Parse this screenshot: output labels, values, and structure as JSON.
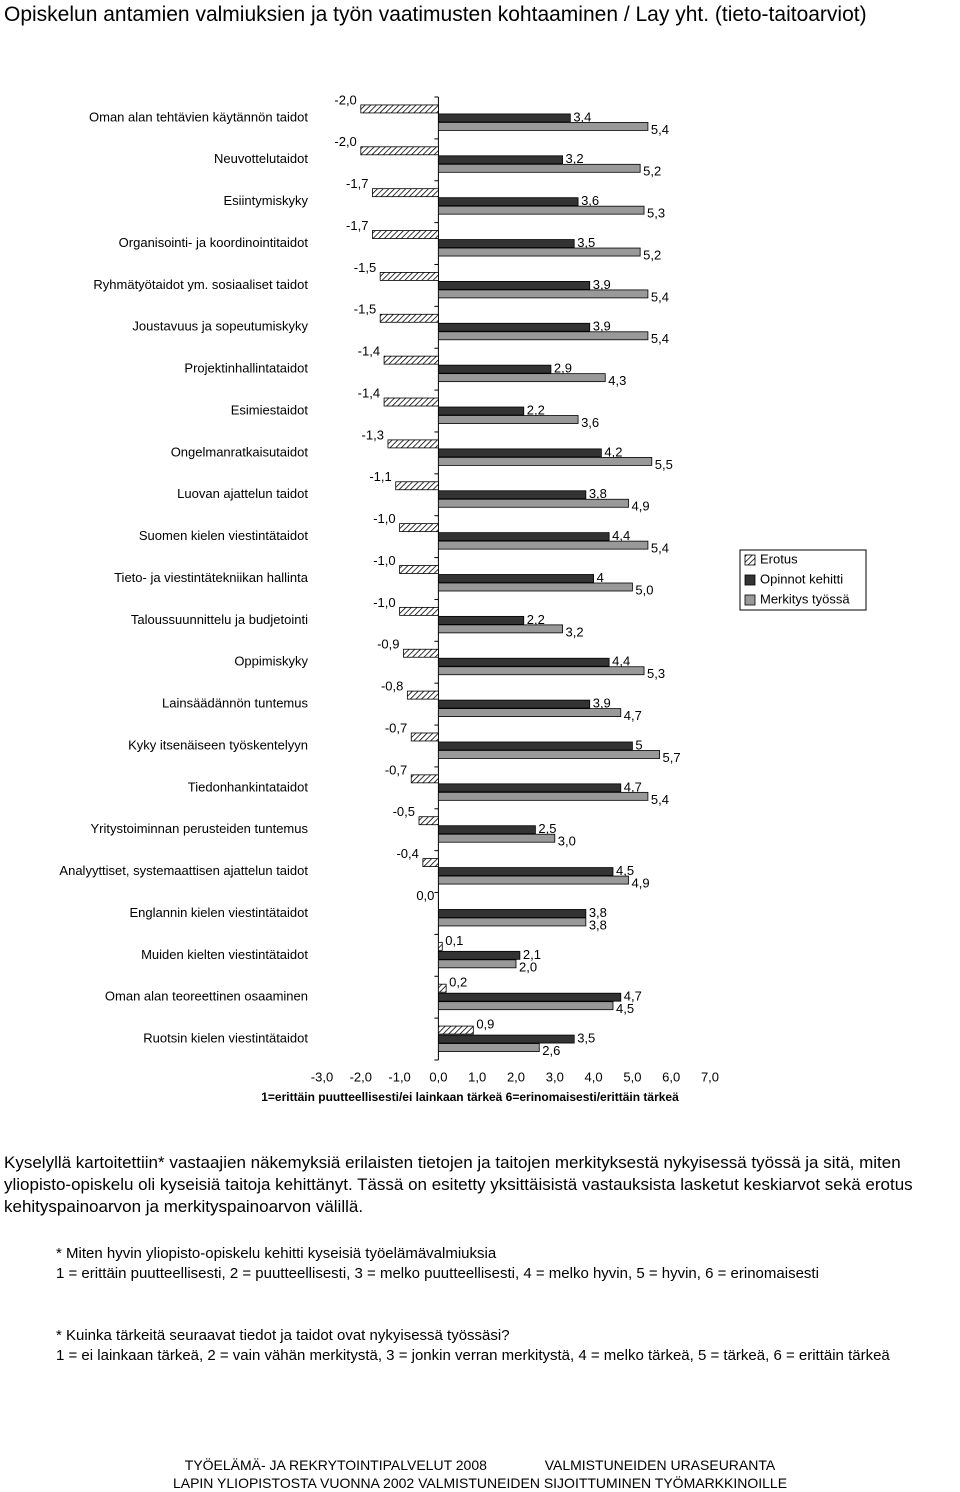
{
  "chart_data": {
    "type": "bar",
    "orientation": "horizontal",
    "title": "Opiskelun antamien valmiuksien ja työn vaatimusten kohtaaminen / Lay yht. (tieto-taitoarviot)",
    "x_label": "1=erittäin puutteellisesti/ei lainkaan tärkeä     6=erinomaisesti/erittäin tärkeä",
    "categories": [
      "Oman alan tehtävien käytännön taidot",
      "Neuvottelutaidot",
      "Esiintymiskyky",
      "Organisointi- ja koordinointitaidot",
      "Ryhmätyötaidot ym. sosiaaliset taidot",
      "Joustavuus ja sopeutumiskyky",
      "Projektinhallintataidot",
      "Esimiestaidot",
      "Ongelmanratkaisutaidot",
      "Luovan ajattelun taidot",
      "Suomen kielen viestintätaidot",
      "Tieto- ja viestintätekniikan hallinta",
      "Taloussuunnittelu ja budjetointi",
      "Oppimiskyky",
      "Lainsäädännön tuntemus",
      "Kyky itsenäiseen työskentelyyn",
      "Tiedonhankintataidot",
      "Yritystoiminnan perusteiden tuntemus",
      "Analyyttiset, systemaattisen ajattelun taidot",
      "Englannin kielen viestintätaidot",
      "Muiden kielten viestintätaidot",
      "Oman alan teoreettinen osaaminen",
      "Ruotsin kielen viestintätaidot"
    ],
    "series": [
      {
        "name": "Erotus",
        "color": "#000000",
        "values": [
          -2.0,
          -2.0,
          -1.7,
          -1.7,
          -1.5,
          -1.5,
          -1.4,
          -1.4,
          -1.3,
          -1.1,
          -1.0,
          -1.0,
          -1.0,
          -0.9,
          -0.8,
          -0.7,
          -0.7,
          -0.5,
          -0.4,
          0.0,
          0.1,
          0.2,
          0.9
        ],
        "value_labels": [
          "-2,0",
          "-2,0",
          "-1,7",
          "-1,7",
          "-1,5",
          "-1,5",
          "-1,4",
          "-1,4",
          "-1,3",
          "-1,1",
          "-1,0",
          "-1,0",
          "-1,0",
          "-0,9",
          "-0,8",
          "-0,7",
          "-0,7",
          "-0,5",
          "-0,4",
          "0,0",
          "0,1",
          "0,2",
          "0,9"
        ]
      },
      {
        "name": "Opinnot kehitti",
        "color": "#333333",
        "values": [
          3.4,
          3.2,
          3.6,
          3.5,
          3.9,
          3.9,
          2.9,
          2.2,
          4.2,
          3.8,
          4.4,
          4,
          2.2,
          4.4,
          3.9,
          5,
          4.7,
          2.5,
          4.5,
          3.8,
          2.1,
          4.7,
          3.5
        ],
        "value_labels": [
          "3,4",
          "3,2",
          "3,6",
          "3,5",
          "3,9",
          "3,9",
          "2,9",
          "2,2",
          "4,2",
          "3,8",
          "4,4",
          "4",
          "2,2",
          "4,4",
          "3,9",
          "5",
          "4,7",
          "2,5",
          "4,5",
          "3,8",
          "2,1",
          "4,7",
          "3,5"
        ]
      },
      {
        "name": "Merkitys työssä",
        "color": "#999999",
        "values": [
          5.4,
          5.2,
          5.3,
          5.2,
          5.4,
          5.4,
          4.3,
          3.6,
          5.5,
          4.9,
          5.4,
          5.0,
          3.2,
          5.3,
          4.7,
          5.7,
          5.4,
          3.0,
          4.9,
          3.8,
          2.0,
          4.5,
          2.6
        ],
        "value_labels": [
          "5,4",
          "5,2",
          "5,3",
          "5,2",
          "5,4",
          "5,4",
          "4,3",
          "3,6",
          "5,5",
          "4,9",
          "5,4",
          "5,0",
          "3,2",
          "5,3",
          "4,7",
          "5,7",
          "5,4",
          "3,0",
          "4,9",
          "3,8",
          "2,0",
          "4,5",
          "2,6"
        ]
      }
    ],
    "xlim": [
      -3,
      7
    ],
    "xticks": [
      {
        "value": -3,
        "label": "-3,0"
      },
      {
        "value": -2,
        "label": "-2,0"
      },
      {
        "value": -1,
        "label": "-1,0"
      },
      {
        "value": 0,
        "label": "0,0"
      },
      {
        "value": 1,
        "label": "1,0"
      },
      {
        "value": 2,
        "label": "2,0"
      },
      {
        "value": 3,
        "label": "3,0"
      },
      {
        "value": 4,
        "label": "4,0"
      },
      {
        "value": 5,
        "label": "5,0"
      },
      {
        "value": 6,
        "label": "6,0"
      },
      {
        "value": 7,
        "label": "7,0"
      }
    ],
    "legend": "right"
  },
  "text": {
    "paragraph": "Kyselyllä kartoitettiin* vastaajien näkemyksiä erilaisten tietojen ja taitojen merkityksestä nykyisessä työssä ja sitä, miten yliopisto-opiskelu oli kyseisiä taitoja kehittänyt. Tässä on esitetty yksittäisistä vastauksista lasketut keskiarvot sekä erotus kehityspainoarvon ja merkityspainoarvon välillä.",
    "notes": [
      [
        "* Miten hyvin yliopisto-opiskelu kehitti kyseisiä työelämävalmiuksia",
        "1 = erittäin puutteellisesti, 2 = puutteellisesti, 3 = melko puutteellisesti, 4 = melko hyvin, 5 = hyvin, 6 = erinomaisesti"
      ],
      [
        "* Kuinka tärkeitä seuraavat tiedot ja taidot ovat nykyisessä työssäsi?",
        "1 = ei lainkaan tärkeä, 2 = vain vähän merkitystä, 3 = jonkin verran merkitystä, 4 = melko tärkeä, 5 = tärkeä, 6 = erittäin tärkeä"
      ]
    ]
  },
  "footer": [
    [
      "TYÖELÄMÄ- JA REKRYTOINTIPALVELUT 2008",
      "VALMISTUNEIDEN URASEURANTA"
    ],
    [
      "LAPIN YLIOPISTOSTA VUONNA 2002 VALMISTUNEIDEN SIJOITTUMINEN TYÖMARKKINOILLE"
    ]
  ]
}
